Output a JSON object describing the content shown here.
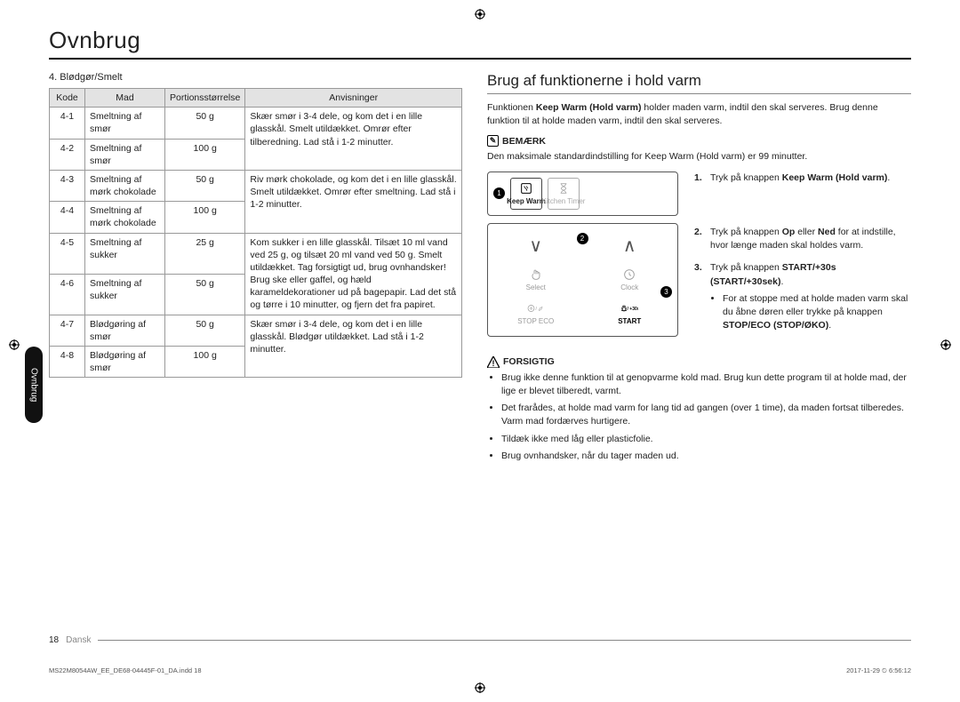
{
  "page_title": "Ovnbrug",
  "side_tab": "Ovnbrug",
  "left": {
    "subtitle": "4. Blødgør/Smelt",
    "headers": [
      "Kode",
      "Mad",
      "Portionsstørrelse",
      "Anvisninger"
    ],
    "rows": [
      {
        "code": "4-1",
        "food": "Smeltning af smør",
        "portion": "50 g",
        "instr": "Skær smør i 3-4 dele, og kom det i en lille glasskål. Smelt utildækket. Omrør efter tilberedning. Lad stå i 1-2 minutter.",
        "rowspan_instr": 2
      },
      {
        "code": "4-2",
        "food": "Smeltning af smør",
        "portion": "100 g"
      },
      {
        "code": "4-3",
        "food": "Smeltning af mørk chokolade",
        "portion": "50 g",
        "instr": "Riv mørk chokolade, og kom det i en lille glasskål. Smelt utildækket. Omrør efter smeltning. Lad stå i 1-2 minutter.",
        "rowspan_instr": 2
      },
      {
        "code": "4-4",
        "food": "Smeltning af mørk chokolade",
        "portion": "100 g"
      },
      {
        "code": "4-5",
        "food": "Smeltning af sukker",
        "portion": "25 g",
        "instr": "Kom sukker i en lille glasskål. Tilsæt 10 ml vand ved 25 g, og tilsæt 20 ml vand ved 50 g. Smelt utildækket. Tag forsigtigt ud, brug ovnhandsker! Brug ske eller gaffel, og hæld karameldekorationer ud på bagepapir. Lad det stå og tørre i 10 minutter, og fjern det fra papiret.",
        "rowspan_instr": 2
      },
      {
        "code": "4-6",
        "food": "Smeltning af sukker",
        "portion": "50 g"
      },
      {
        "code": "4-7",
        "food": "Blødgøring af smør",
        "portion": "50 g",
        "instr": "Skær smør i 3-4 dele, og kom det i en lille glasskål. Blødgør utildækket. Lad stå i 1-2 minutter.",
        "rowspan_instr": 2
      },
      {
        "code": "4-8",
        "food": "Blødgøring af smør",
        "portion": "100 g"
      }
    ]
  },
  "right": {
    "heading": "Brug af funktionerne i hold varm",
    "intro_before": "Funktionen ",
    "intro_bold": "Keep Warm (Hold varm)",
    "intro_after": " holder maden varm, indtil den skal serveres. Brug denne funktion til at holde maden varm, indtil den skal serveres.",
    "note_label": "BEMÆRK",
    "note_text": "Den maksimale standardindstilling for Keep Warm (Hold varm) er 99 minutter.",
    "panel": {
      "keep_warm": "Keep Warm",
      "kitchen_timer": "Kitchen Timer",
      "select": "Select",
      "clock": "Clock",
      "stop_eco": "STOP   ECO",
      "start": "START",
      "plus30": "/ +30s"
    },
    "steps": [
      {
        "pre": "Tryk på knappen ",
        "bold": "Keep Warm (Hold varm)",
        "post": "."
      },
      {
        "pre": "Tryk på knappen ",
        "bold": "Op",
        "mid": " eller ",
        "bold2": "Ned",
        "post": " for at indstille, hvor længe maden skal holdes varm."
      },
      {
        "pre": "Tryk på knappen ",
        "bold": "START/+30s (START/+30sek)",
        "post": ".",
        "sub": [
          {
            "pre": "For at stoppe med at holde maden varm skal du åbne døren eller trykke på knappen ",
            "bold": "STOP/ECO (STOP/ØKO)",
            "post": "."
          }
        ]
      }
    ],
    "caution_label": "FORSIGTIG",
    "caution": [
      "Brug ikke denne funktion til at genopvarme kold mad. Brug kun dette program til at holde mad, der lige er blevet tilberedt, varmt.",
      "Det frarådes, at holde mad varm for lang tid ad gangen (over 1 time), da maden fortsat tilberedes. Varm mad fordærves hurtigere.",
      "Tildæk ikke med låg eller plasticfolie.",
      "Brug ovnhandsker, når du tager maden ud."
    ]
  },
  "footer": {
    "page_no": "18",
    "lang": "Dansk",
    "left_note": "MS22M8054AW_EE_DE68-04445F-01_DA.indd   18",
    "right_note": "2017-11-29   ⏲ 6:56:12"
  }
}
